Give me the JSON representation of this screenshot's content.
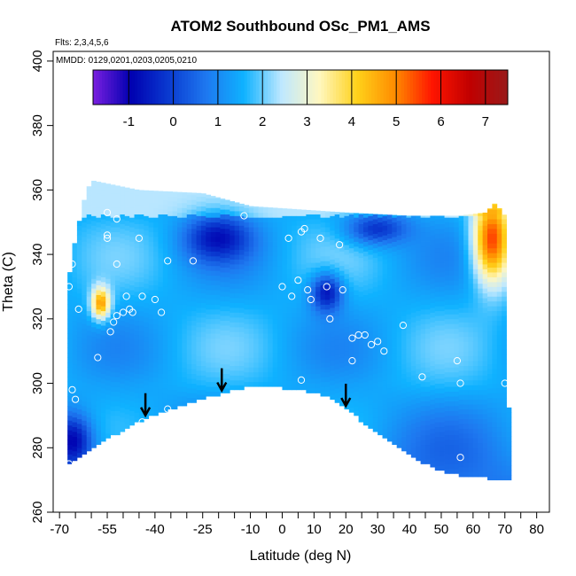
{
  "chart_data": {
    "type": "heatmap",
    "title": "ATOM2 Southbound OSc_PM1_AMS",
    "flights_note": "Flts: 2,3,4,5,6",
    "dates_note": "MMDD: 0129,0201,0203,0205,0210",
    "xlabel": "Latitude (deg N)",
    "ylabel": "Theta (C)",
    "xlim": [
      -72,
      84
    ],
    "ylim": [
      260,
      403
    ],
    "x_ticks": [
      -70,
      -55,
      -40,
      -25,
      -10,
      0,
      10,
      20,
      30,
      40,
      50,
      60,
      70,
      80
    ],
    "x_minor_ticks": [
      -65,
      -60,
      -50,
      -45,
      -35,
      -30,
      -20,
      -15,
      -5,
      5,
      15,
      25,
      35,
      45,
      55,
      65,
      75
    ],
    "y_ticks": [
      260,
      280,
      300,
      320,
      340,
      360,
      380,
      400
    ],
    "colorbar": {
      "range": [
        -1.8,
        7.5
      ],
      "ticks": [
        -1,
        0,
        1,
        2,
        3,
        4,
        5,
        6,
        7
      ],
      "colors": [
        "#7a1fe0",
        "#0000b0",
        "#0a3ad0",
        "#1e78f0",
        "#0fb2ff",
        "#bfe8ff",
        "#fff7c0",
        "#ffd21a",
        "#ff8c00",
        "#ff1500",
        "#c00000",
        "#9a1a1a"
      ]
    },
    "field": {
      "top_boundary": [
        [
          -67.5,
          330
        ],
        [
          -65,
          345
        ],
        [
          -62,
          358
        ],
        [
          -60,
          363
        ],
        [
          -55,
          362
        ],
        [
          -45,
          360
        ],
        [
          -25,
          359
        ],
        [
          -10,
          355
        ],
        [
          5,
          354
        ],
        [
          20,
          353
        ],
        [
          40,
          352
        ],
        [
          55,
          352
        ],
        [
          64,
          353
        ],
        [
          67,
          356
        ],
        [
          70,
          352
        ],
        [
          71,
          300
        ],
        [
          72,
          270
        ]
      ],
      "bottom_boundary": [
        [
          -67.5,
          275
        ],
        [
          -60,
          280
        ],
        [
          -50,
          286
        ],
        [
          -42,
          290
        ],
        [
          -30,
          294
        ],
        [
          -20,
          297
        ],
        [
          -8,
          300
        ],
        [
          0,
          299
        ],
        [
          8,
          298
        ],
        [
          15,
          296
        ],
        [
          22,
          291
        ],
        [
          30,
          285
        ],
        [
          40,
          278
        ],
        [
          48,
          274
        ],
        [
          55,
          272
        ],
        [
          65,
          271
        ],
        [
          72,
          270
        ]
      ],
      "anomalies": [
        {
          "lat": -57,
          "theta": 325,
          "value": 4.8,
          "spread_lat": 3,
          "spread_theta": 5
        },
        {
          "lat": 66,
          "theta": 345,
          "value": 5.5,
          "spread_lat": 6,
          "spread_theta": 14
        },
        {
          "lat": -20,
          "theta": 345,
          "value": -0.8,
          "spread_lat": 10,
          "spread_theta": 7
        },
        {
          "lat": 14,
          "theta": 328,
          "value": -0.6,
          "spread_lat": 5,
          "spread_theta": 6
        },
        {
          "lat": -66,
          "theta": 282,
          "value": -0.9,
          "spread_lat": 6,
          "spread_theta": 8
        },
        {
          "lat": 30,
          "theta": 348,
          "value": -0.2,
          "spread_lat": 10,
          "spread_theta": 5
        }
      ]
    },
    "sample_points": [
      [
        -67,
        330
      ],
      [
        -66,
        337
      ],
      [
        -66,
        298
      ],
      [
        -65,
        295
      ],
      [
        -67,
        275
      ],
      [
        -64,
        323
      ],
      [
        -58,
        308
      ],
      [
        -55,
        353
      ],
      [
        -55,
        346
      ],
      [
        -55,
        345
      ],
      [
        -52,
        351
      ],
      [
        -52,
        337
      ],
      [
        -53,
        319
      ],
      [
        -52,
        321
      ],
      [
        -50,
        322
      ],
      [
        -49,
        327
      ],
      [
        -48,
        323
      ],
      [
        -47,
        322
      ],
      [
        -45,
        345
      ],
      [
        -44,
        327
      ],
      [
        -44,
        288
      ],
      [
        -40,
        326
      ],
      [
        -38,
        322
      ],
      [
        -36,
        338
      ],
      [
        -36,
        292
      ],
      [
        -28,
        338
      ],
      [
        -23,
        292
      ],
      [
        -12,
        352
      ],
      [
        0,
        330
      ],
      [
        2,
        345
      ],
      [
        3,
        327
      ],
      [
        5,
        332
      ],
      [
        6,
        347
      ],
      [
        7,
        348
      ],
      [
        8,
        329
      ],
      [
        9,
        326
      ],
      [
        12,
        345
      ],
      [
        14,
        330
      ],
      [
        15,
        320
      ],
      [
        18,
        343
      ],
      [
        19,
        329
      ],
      [
        22,
        314
      ],
      [
        22,
        307
      ],
      [
        24,
        315
      ],
      [
        26,
        315
      ],
      [
        28,
        312
      ],
      [
        30,
        313
      ],
      [
        32,
        310
      ],
      [
        38,
        318
      ],
      [
        44,
        302
      ],
      [
        55,
        307
      ],
      [
        56,
        300
      ],
      [
        56,
        277
      ],
      [
        6,
        301
      ],
      [
        -54,
        316
      ],
      [
        70,
        300
      ]
    ],
    "arrows_lat": [
      -43,
      -19,
      20
    ]
  }
}
